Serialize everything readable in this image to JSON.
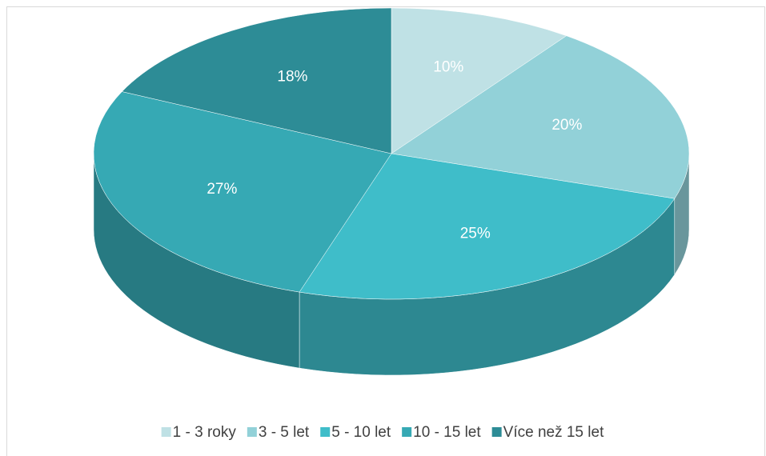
{
  "chart_data": {
    "type": "pie",
    "categories": [
      "1 - 3 roky",
      "3 - 5 let",
      "5 - 10 let",
      "10 - 15 let",
      "Více než 15 let"
    ],
    "values": [
      10,
      20,
      25,
      27,
      18
    ],
    "value_labels": [
      "10%",
      "20%",
      "25%",
      "27%",
      "18%"
    ],
    "colors": [
      "#bfe1e5",
      "#92d1d8",
      "#3fbdc9",
      "#36a9b4",
      "#2d8c96"
    ],
    "legend": "bottom"
  }
}
